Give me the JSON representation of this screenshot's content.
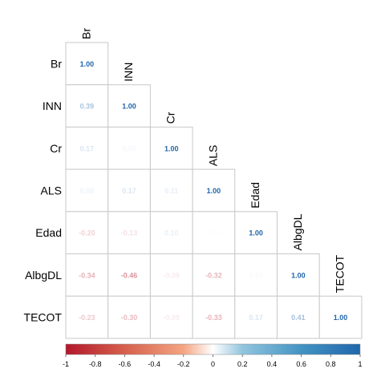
{
  "chart_data": {
    "type": "heatmap",
    "style": "lower-triangle correlation matrix",
    "variables": [
      "Br",
      "INN",
      "Cr",
      "ALS",
      "Edad",
      "AlbgDL",
      "TECOT"
    ],
    "matrix": [
      [
        1.0,
        null,
        null,
        null,
        null,
        null,
        null
      ],
      [
        0.39,
        1.0,
        null,
        null,
        null,
        null,
        null
      ],
      [
        0.17,
        0.05,
        1.0,
        null,
        null,
        null,
        null
      ],
      [
        0.08,
        0.17,
        0.11,
        1.0,
        null,
        null,
        null
      ],
      [
        -0.2,
        -0.13,
        0.1,
        0.02,
        1.0,
        null,
        null
      ],
      [
        -0.34,
        -0.46,
        -0.09,
        -0.32,
        0.03,
        1.0,
        null
      ],
      [
        -0.23,
        -0.3,
        -0.09,
        -0.33,
        0.17,
        0.41,
        1.0
      ]
    ],
    "cell_labels": [
      [
        "1.00",
        "",
        "",
        "",
        "",
        "",
        ""
      ],
      [
        "0.39",
        "1.00",
        "",
        "",
        "",
        "",
        ""
      ],
      [
        "0.17",
        "0.05",
        "1.00",
        "",
        "",
        "",
        ""
      ],
      [
        "0.08",
        "0.17",
        "0.11",
        "1.00",
        "",
        "",
        ""
      ],
      [
        "-0.20",
        "-0.13",
        "0.10",
        "0.02",
        "1.00",
        "",
        ""
      ],
      [
        "-0.34",
        "-0.46",
        "-0.09",
        "-0.32",
        "0.03",
        "1.00",
        ""
      ],
      [
        "-0.23",
        "-0.30",
        "-0.09",
        "-0.33",
        "0.17",
        "0.41",
        "1.00"
      ]
    ],
    "colorbar": {
      "range": [
        -1,
        1
      ],
      "ticks": [
        "-1",
        "-0.8",
        "-0.6",
        "-0.4",
        "-0.2",
        "0",
        "0.2",
        "0.4",
        "0.6",
        "0.8",
        "1"
      ],
      "colors": {
        "negative": "#b2182b",
        "neutral": "#ffffff",
        "positive": "#2166ac"
      }
    },
    "grid": true,
    "legend": "bottom"
  }
}
